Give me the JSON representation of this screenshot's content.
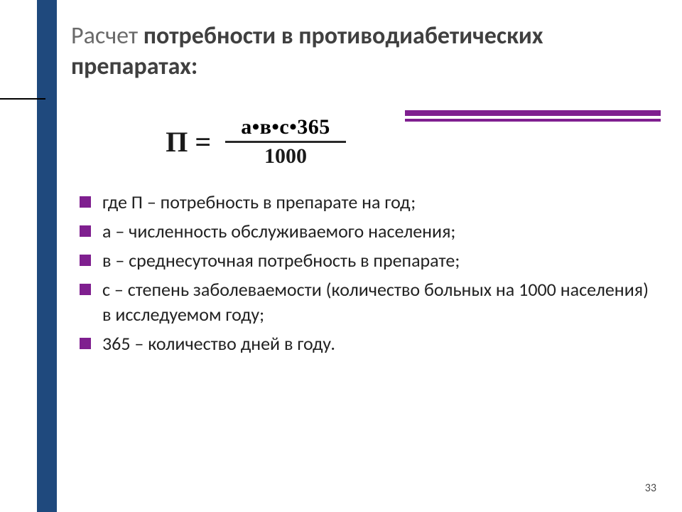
{
  "colors": {
    "sidebar": "#1f497d",
    "accent": "#7f1f8f",
    "title_light": "#6a6a6a",
    "title_bold": "#404040",
    "text": "#222222",
    "bg": "#ffffff"
  },
  "title": {
    "part1": "Расчет ",
    "part2": "потребности в противодиабетических препаратах:"
  },
  "formula": {
    "lhs": "П =",
    "numerator": "а•в•с•365",
    "denominator": "1000"
  },
  "bullets": [
    "где П – потребность в препарате на год;",
    "а – численность обслуживаемого населения;",
    "в – среднесуточная потребность в препарате;",
    "с – степень заболеваемости (количество больных на 1000 населения) в исследуемом году;",
    "365 – количество дней в году."
  ],
  "page_number": "33"
}
